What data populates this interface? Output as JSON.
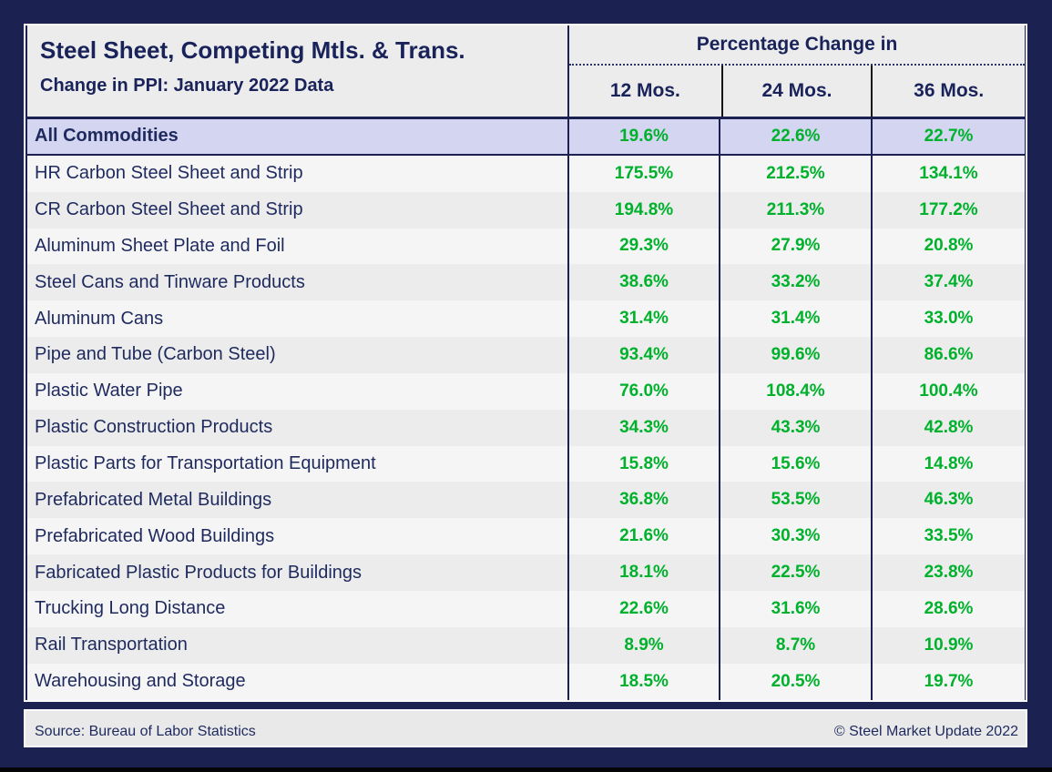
{
  "title_block": {
    "title": "Steel Sheet, Competing Mtls. & Trans.",
    "subtitle": "Change in PPI: January 2022 Data"
  },
  "columns_header": {
    "group_label": "Percentage Change in",
    "columns": [
      "12 Mos.",
      "24 Mos.",
      "36 Mos."
    ]
  },
  "rows": [
    {
      "label": "All Commodities",
      "values": [
        "19.6%",
        "22.6%",
        "22.7%"
      ],
      "highlight": true
    },
    {
      "label": "HR Carbon Steel Sheet and Strip",
      "values": [
        "175.5%",
        "212.5%",
        "134.1%"
      ],
      "highlight": false
    },
    {
      "label": "CR Carbon Steel Sheet and Strip",
      "values": [
        "194.8%",
        "211.3%",
        "177.2%"
      ],
      "highlight": false
    },
    {
      "label": "Aluminum Sheet Plate and Foil",
      "values": [
        "29.3%",
        "27.9%",
        "20.8%"
      ],
      "highlight": false
    },
    {
      "label": "Steel Cans and Tinware Products",
      "values": [
        "38.6%",
        "33.2%",
        "37.4%"
      ],
      "highlight": false
    },
    {
      "label": "Aluminum Cans",
      "values": [
        "31.4%",
        "31.4%",
        "33.0%"
      ],
      "highlight": false
    },
    {
      "label": "Pipe and Tube (Carbon Steel)",
      "values": [
        "93.4%",
        "99.6%",
        "86.6%"
      ],
      "highlight": false
    },
    {
      "label": "Plastic Water Pipe",
      "values": [
        "76.0%",
        "108.4%",
        "100.4%"
      ],
      "highlight": false
    },
    {
      "label": "Plastic Construction Products",
      "values": [
        "34.3%",
        "43.3%",
        "42.8%"
      ],
      "highlight": false
    },
    {
      "label": "Plastic Parts for Transportation Equipment",
      "values": [
        "15.8%",
        "15.6%",
        "14.8%"
      ],
      "highlight": false
    },
    {
      "label": "Prefabricated Metal Buildings",
      "values": [
        "36.8%",
        "53.5%",
        "46.3%"
      ],
      "highlight": false
    },
    {
      "label": "Prefabricated Wood Buildings",
      "values": [
        "21.6%",
        "30.3%",
        "33.5%"
      ],
      "highlight": false
    },
    {
      "label": "Fabricated Plastic Products for Buildings",
      "values": [
        "18.1%",
        "22.5%",
        "23.8%"
      ],
      "highlight": false
    },
    {
      "label": "Trucking Long Distance",
      "values": [
        "22.6%",
        "31.6%",
        "28.6%"
      ],
      "highlight": false
    },
    {
      "label": "Rail Transportation",
      "values": [
        "8.9%",
        "8.7%",
        "10.9%"
      ],
      "highlight": false
    },
    {
      "label": "Warehousing and Storage",
      "values": [
        "18.5%",
        "20.5%",
        "19.7%"
      ],
      "highlight": false
    }
  ],
  "footer": {
    "source": "Source: Bureau of Labor Statistics",
    "copyright": "© Steel Market Update 2022"
  },
  "colors": {
    "frame_navy": "#1b2150",
    "text_navy": "#1e2a5e",
    "value_green": "#00b12c",
    "highlight_row": "#d3d5f1",
    "row_light": "#f5f5f5",
    "row_gray": "#ececec"
  },
  "chart_data": {
    "type": "table",
    "title": "Steel Sheet, Competing Mtls. & Trans. — Change in PPI: January 2022 Data",
    "column_group_label": "Percentage Change in",
    "columns": [
      "12 Mos.",
      "24 Mos.",
      "36 Mos."
    ],
    "categories": [
      "All Commodities",
      "HR Carbon Steel Sheet and Strip",
      "CR Carbon Steel Sheet and Strip",
      "Aluminum Sheet Plate and Foil",
      "Steel Cans and Tinware Products",
      "Aluminum Cans",
      "Pipe and Tube (Carbon Steel)",
      "Plastic Water Pipe",
      "Plastic Construction Products",
      "Plastic Parts for Transportation Equipment",
      "Prefabricated Metal Buildings",
      "Prefabricated Wood Buildings",
      "Fabricated Plastic Products for Buildings",
      "Trucking Long Distance",
      "Rail Transportation",
      "Warehousing and Storage"
    ],
    "series": [
      {
        "name": "12 Mos.",
        "values": [
          19.6,
          175.5,
          194.8,
          29.3,
          38.6,
          31.4,
          93.4,
          76.0,
          34.3,
          15.8,
          36.8,
          21.6,
          18.1,
          22.6,
          8.9,
          18.5
        ]
      },
      {
        "name": "24 Mos.",
        "values": [
          22.6,
          212.5,
          211.3,
          27.9,
          33.2,
          31.4,
          99.6,
          108.4,
          43.3,
          15.6,
          53.5,
          30.3,
          22.5,
          31.6,
          8.7,
          20.5
        ]
      },
      {
        "name": "36 Mos.",
        "values": [
          22.7,
          134.1,
          177.2,
          20.8,
          37.4,
          33.0,
          86.6,
          100.4,
          42.8,
          14.8,
          46.3,
          33.5,
          23.8,
          28.6,
          10.9,
          19.7
        ]
      }
    ],
    "units": "percent",
    "source": "Bureau of Labor Statistics"
  }
}
